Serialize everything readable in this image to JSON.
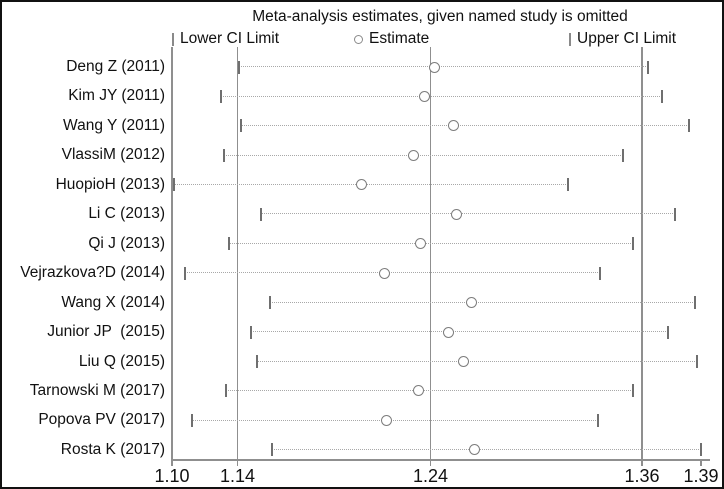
{
  "title": "Meta-analysis estimates, given named study is omitted",
  "legend": {
    "lower_label": "Lower CI Limit",
    "estimate_label": "Estimate",
    "upper_label": "Upper CI Limit"
  },
  "colors": {
    "background": "#ffffff",
    "text": "#111111",
    "gridline": "#8f8f8f",
    "ci_dots": "#a8a8a8",
    "marker": "#7d7d7d"
  },
  "chart_data": {
    "type": "scatter",
    "subtype": "leave-one-out-forest",
    "title": "Meta-analysis estimates, given named study is omitted",
    "xlabel": "",
    "ylabel": "",
    "xlim": [
      1.1,
      1.39
    ],
    "x_ticks": [
      1.1,
      1.14,
      1.24,
      1.36,
      1.39
    ],
    "x_tick_labels": [
      "1.10",
      "1.14",
      "1.24",
      "1.36",
      "1.39"
    ],
    "reference_lines": [
      1.14,
      1.24,
      1.36
    ],
    "grid": "vertical-reference-lines",
    "legend_position": "top",
    "studies": [
      {
        "label": "Deng Z (2011)",
        "lower": 1.141,
        "estimate": 1.242,
        "upper": 1.363
      },
      {
        "label": "Kim JY (2011)",
        "lower": 1.13,
        "estimate": 1.237,
        "upper": 1.37
      },
      {
        "label": "Wang Y (2011)",
        "lower": 1.142,
        "estimate": 1.253,
        "upper": 1.384
      },
      {
        "label": "VlassiM (2012)",
        "lower": 1.132,
        "estimate": 1.231,
        "upper": 1.349
      },
      {
        "label": "HuopioH (2013)",
        "lower": 1.101,
        "estimate": 1.204,
        "upper": 1.318
      },
      {
        "label": "Li C (2013)",
        "lower": 1.152,
        "estimate": 1.255,
        "upper": 1.377
      },
      {
        "label": "Qi J (2013)",
        "lower": 1.135,
        "estimate": 1.235,
        "upper": 1.355
      },
      {
        "label": "Vejrazkova?D (2014)",
        "lower": 1.108,
        "estimate": 1.216,
        "upper": 1.336
      },
      {
        "label": "Wang X (2014)",
        "lower": 1.157,
        "estimate": 1.263,
        "upper": 1.387
      },
      {
        "label": "Junior JP  (2015)",
        "lower": 1.147,
        "estimate": 1.25,
        "upper": 1.373
      },
      {
        "label": "Liu Q (2015)",
        "lower": 1.15,
        "estimate": 1.259,
        "upper": 1.388
      },
      {
        "label": "Tarnowski M (2017)",
        "lower": 1.133,
        "estimate": 1.234,
        "upper": 1.355
      },
      {
        "label": "Popova PV (2017)",
        "lower": 1.112,
        "estimate": 1.217,
        "upper": 1.335
      },
      {
        "label": "Rosta K (2017)",
        "lower": 1.158,
        "estimate": 1.265,
        "upper": 1.39
      }
    ]
  }
}
